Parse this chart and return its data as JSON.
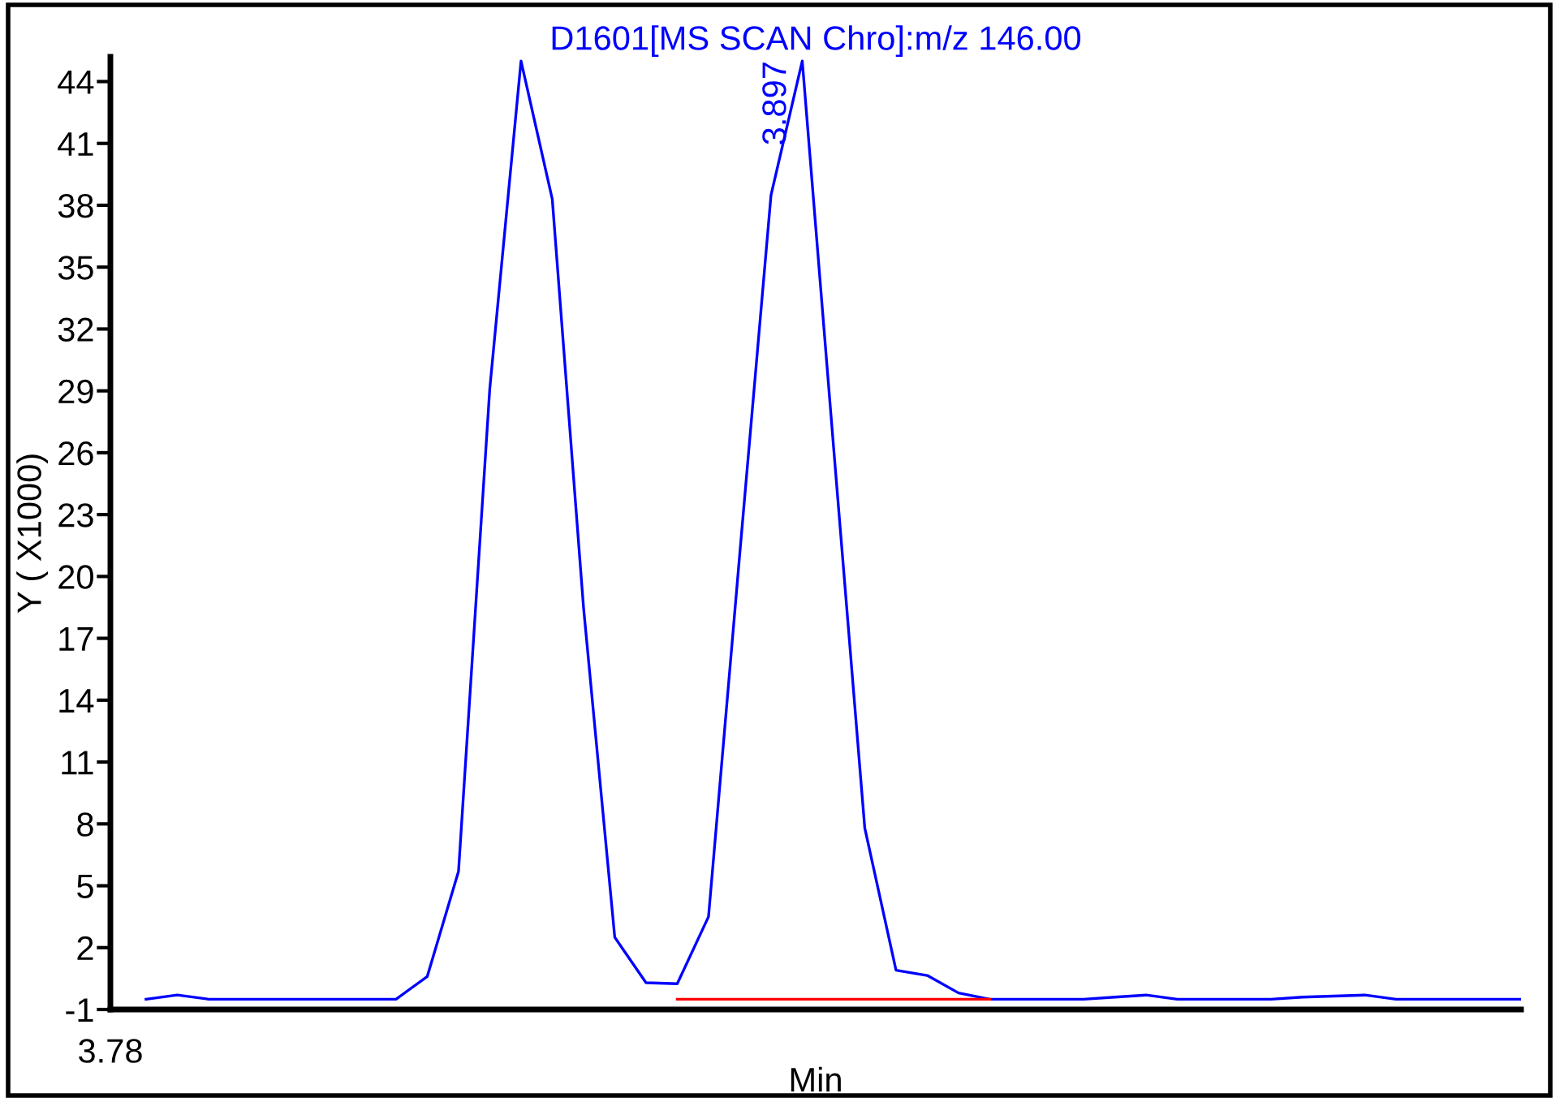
{
  "chart_data": {
    "type": "line",
    "title": "D1601[MS SCAN Chro]:m/z 146.00",
    "xlabel": "Min",
    "ylabel": "Y ( X1000)",
    "categories": [
      null,
      null,
      null,
      null,
      null,
      null,
      null,
      null,
      null,
      null,
      null,
      null,
      null,
      null,
      null,
      null,
      null,
      null,
      null,
      null,
      null,
      null,
      null,
      null,
      null,
      null,
      null,
      null,
      null,
      null,
      null,
      null,
      null,
      null,
      null,
      null,
      null,
      null,
      null,
      null,
      null,
      null,
      null,
      null,
      null
    ],
    "series": [
      {
        "color": "#0000ff",
        "values": [
          -0.5,
          -0.3,
          -0.5,
          -0.5,
          -0.5,
          -0.5,
          -0.5,
          -0.5,
          -0.5,
          0.6,
          5.7,
          29.1,
          45.0,
          38.3,
          18.5,
          2.5,
          0.3,
          0.25,
          3.5,
          21.1,
          38.5,
          45.0,
          26.3,
          7.8,
          0.9,
          0.65,
          -0.2,
          -0.5,
          -0.5,
          -0.5,
          -0.5,
          -0.4,
          -0.3,
          -0.5,
          -0.5,
          -0.5,
          -0.5,
          -0.4,
          -0.35,
          -0.3,
          -0.5,
          -0.5,
          -0.5,
          -0.5,
          -0.5
        ]
      },
      {
        "color": "#ff0000",
        "values": [
          null,
          null,
          null,
          null,
          null,
          null,
          null,
          null,
          null,
          null,
          null,
          null,
          null,
          null,
          null,
          null,
          null,
          -0.5,
          -0.5,
          -0.5,
          -0.5,
          -0.5,
          -0.5,
          -0.5,
          -0.5,
          -0.5,
          -0.5,
          -0.5,
          null,
          null,
          null,
          null,
          null,
          null,
          null,
          null,
          null,
          null,
          null,
          null,
          null,
          null,
          null,
          null,
          null
        ]
      }
    ],
    "annotations": [
      "3.897",
      "3.78"
    ],
    "ylim": [
      -1,
      45.2
    ],
    "yticks": [
      -1,
      2,
      5,
      8,
      11,
      14,
      17,
      20,
      23,
      26,
      29,
      32,
      35,
      38,
      41,
      44
    ],
    "grid": false,
    "legend": false,
    "marker": "none",
    "line_style": "solid"
  }
}
